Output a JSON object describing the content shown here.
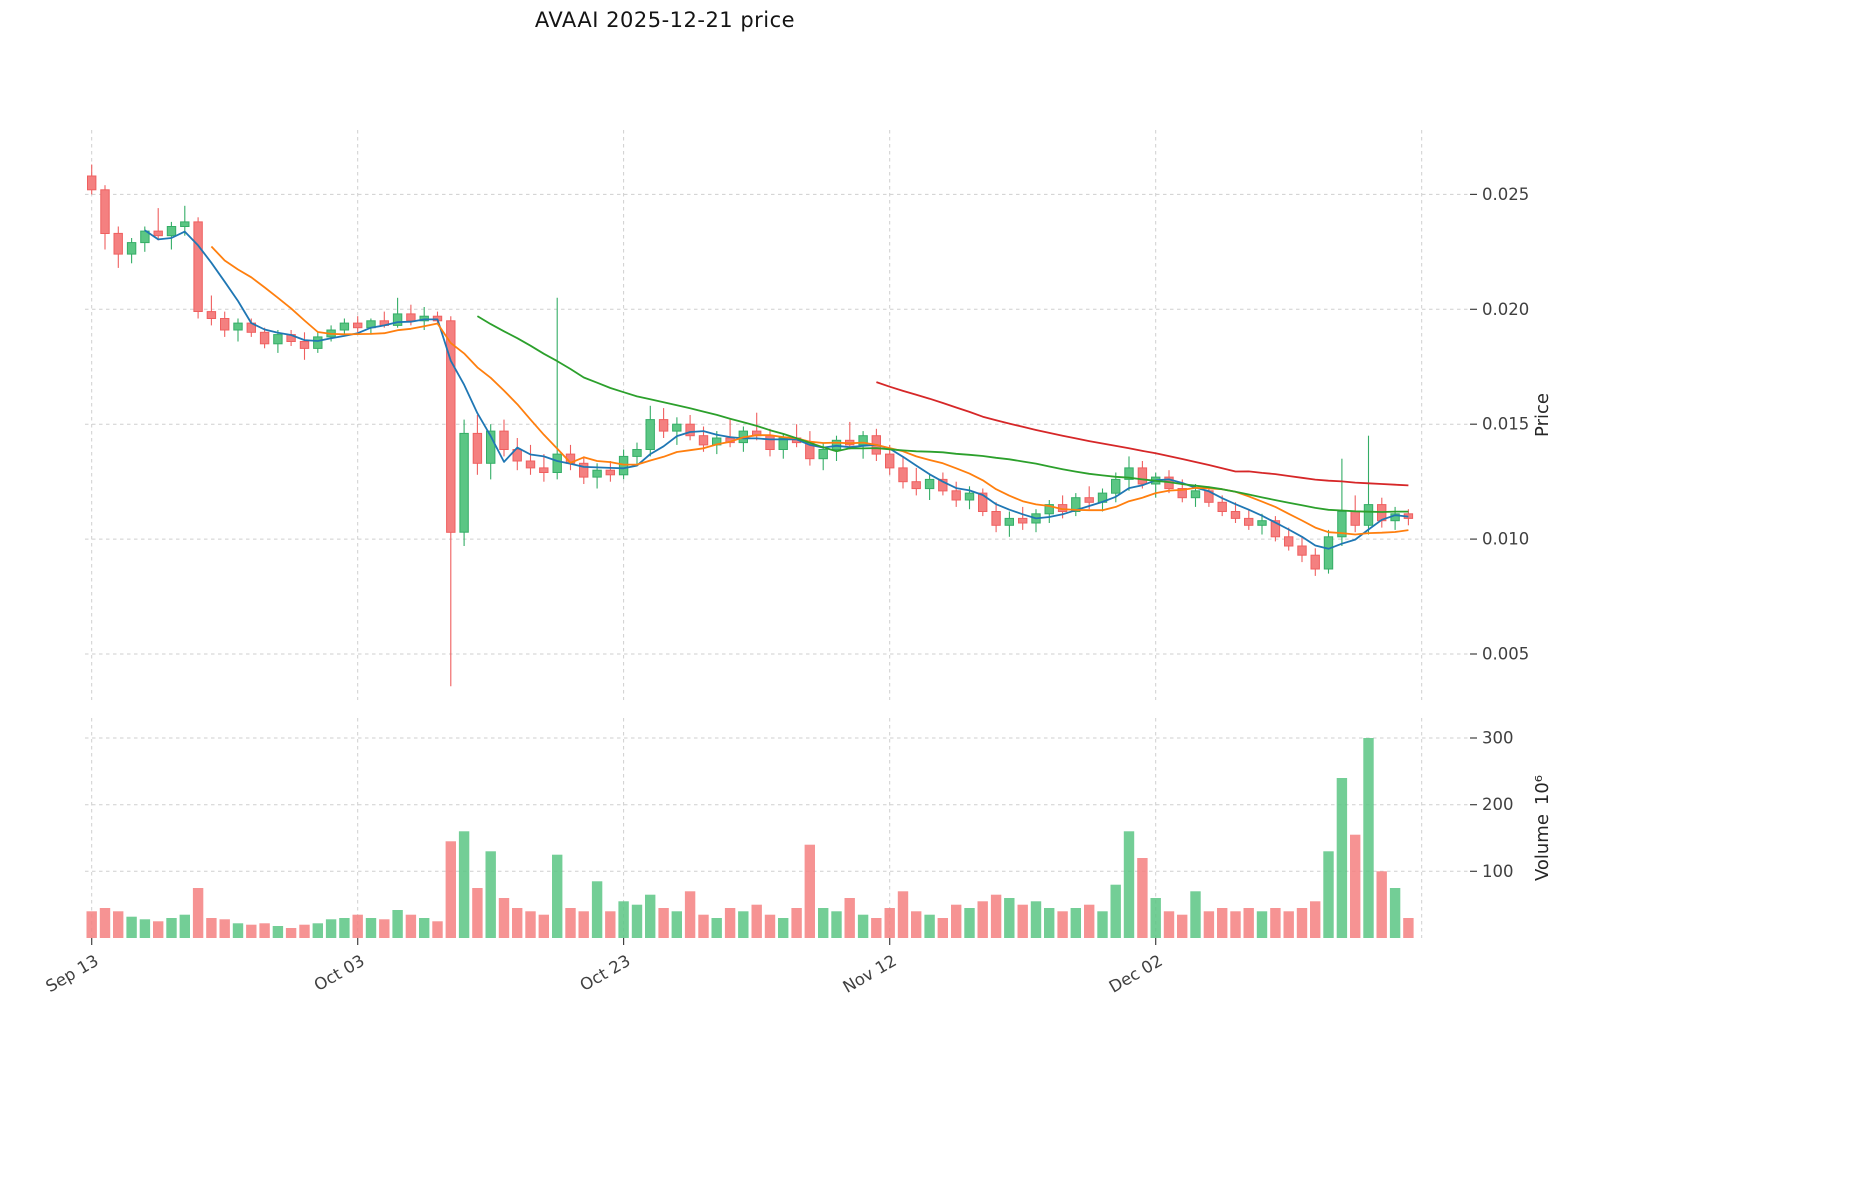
{
  "chart_data": {
    "type": "candlestick_with_volume",
    "title": "AVAAI  2025-12-21  price",
    "price_axis": {
      "label": "Price",
      "ticks": [
        0.005,
        0.01,
        0.015,
        0.02,
        0.025
      ],
      "ylim": [
        0.003,
        0.0278
      ]
    },
    "volume_axis": {
      "label": "Volume",
      "unit": "10⁶",
      "ticks": [
        100,
        200,
        300
      ],
      "ylim": [
        0,
        330
      ]
    },
    "x_ticks": {
      "days": [
        0,
        20,
        40,
        60,
        80
      ],
      "labels": [
        "Sep 13",
        "Oct 03",
        "Oct 23",
        "Nov 12",
        "Dec 02"
      ],
      "extra_grid_days": [
        100
      ]
    },
    "legend_position": "none",
    "grid": true,
    "grid_color": "#cfcfcf",
    "up_color": "#5bc684",
    "down_color": "#f48080",
    "up_edge": "#34ad66",
    "down_edge": "#ef5f5f",
    "moving_averages": [
      {
        "window": 5,
        "color": "#1f77b4"
      },
      {
        "window": 10,
        "color": "#ff7f0e"
      },
      {
        "window": 30,
        "color": "#2ca02c"
      },
      {
        "window": 60,
        "color": "#d62728"
      }
    ],
    "dates": [
      "2025-09-13",
      "2025-09-14",
      "2025-09-15",
      "2025-09-16",
      "2025-09-17",
      "2025-09-18",
      "2025-09-19",
      "2025-09-20",
      "2025-09-21",
      "2025-09-22",
      "2025-09-23",
      "2025-09-24",
      "2025-09-25",
      "2025-09-26",
      "2025-09-27",
      "2025-09-28",
      "2025-09-29",
      "2025-09-30",
      "2025-10-01",
      "2025-10-02",
      "2025-10-03",
      "2025-10-04",
      "2025-10-05",
      "2025-10-06",
      "2025-10-07",
      "2025-10-08",
      "2025-10-09",
      "2025-10-10",
      "2025-10-11",
      "2025-10-12",
      "2025-10-13",
      "2025-10-14",
      "2025-10-15",
      "2025-10-16",
      "2025-10-17",
      "2025-10-18",
      "2025-10-19",
      "2025-10-20",
      "2025-10-21",
      "2025-10-22",
      "2025-10-23",
      "2025-10-24",
      "2025-10-25",
      "2025-10-26",
      "2025-10-27",
      "2025-10-28",
      "2025-10-29",
      "2025-10-30",
      "2025-10-31",
      "2025-11-01",
      "2025-11-02",
      "2025-11-03",
      "2025-11-04",
      "2025-11-05",
      "2025-11-06",
      "2025-11-07",
      "2025-11-08",
      "2025-11-09",
      "2025-11-10",
      "2025-11-11",
      "2025-11-12",
      "2025-11-13",
      "2025-11-14",
      "2025-11-15",
      "2025-11-16",
      "2025-11-17",
      "2025-11-18",
      "2025-11-19",
      "2025-11-20",
      "2025-11-21",
      "2025-11-22",
      "2025-11-23",
      "2025-11-24",
      "2025-11-25",
      "2025-11-26",
      "2025-11-27",
      "2025-11-28",
      "2025-11-29",
      "2025-11-30",
      "2025-12-01",
      "2025-12-02",
      "2025-12-03",
      "2025-12-04",
      "2025-12-05",
      "2025-12-06",
      "2025-12-07",
      "2025-12-08",
      "2025-12-09",
      "2025-12-10",
      "2025-12-11",
      "2025-12-12",
      "2025-12-13",
      "2025-12-14",
      "2025-12-15",
      "2025-12-16",
      "2025-12-17",
      "2025-12-18",
      "2025-12-19",
      "2025-12-20",
      "2025-12-21"
    ],
    "ohlcv": [
      [
        0.0258,
        0.0263,
        0.025,
        0.0252,
        40
      ],
      [
        0.0252,
        0.0254,
        0.0226,
        0.0233,
        45
      ],
      [
        0.0233,
        0.0236,
        0.0218,
        0.0224,
        40
      ],
      [
        0.0224,
        0.0231,
        0.022,
        0.0229,
        32
      ],
      [
        0.0229,
        0.0236,
        0.0225,
        0.0234,
        28
      ],
      [
        0.0234,
        0.0244,
        0.023,
        0.0232,
        25
      ],
      [
        0.0232,
        0.0238,
        0.0226,
        0.0236,
        30
      ],
      [
        0.0236,
        0.0245,
        0.0232,
        0.0238,
        35
      ],
      [
        0.0238,
        0.024,
        0.0196,
        0.0199,
        75
      ],
      [
        0.0199,
        0.0206,
        0.0193,
        0.0196,
        30
      ],
      [
        0.0196,
        0.0199,
        0.0188,
        0.0191,
        28
      ],
      [
        0.0191,
        0.0196,
        0.0186,
        0.0194,
        22
      ],
      [
        0.0194,
        0.0196,
        0.0188,
        0.019,
        20
      ],
      [
        0.019,
        0.0192,
        0.0183,
        0.0185,
        22
      ],
      [
        0.0185,
        0.0191,
        0.0181,
        0.0189,
        18
      ],
      [
        0.0189,
        0.0191,
        0.0184,
        0.0186,
        15
      ],
      [
        0.0186,
        0.019,
        0.0178,
        0.0183,
        20
      ],
      [
        0.0183,
        0.019,
        0.0181,
        0.0188,
        22
      ],
      [
        0.0188,
        0.0193,
        0.0186,
        0.0191,
        28
      ],
      [
        0.0191,
        0.0196,
        0.0189,
        0.0194,
        30
      ],
      [
        0.0194,
        0.0197,
        0.019,
        0.0192,
        35
      ],
      [
        0.0192,
        0.0196,
        0.0189,
        0.0195,
        30
      ],
      [
        0.0195,
        0.0199,
        0.0192,
        0.0193,
        28
      ],
      [
        0.0193,
        0.0205,
        0.0192,
        0.0198,
        42
      ],
      [
        0.0198,
        0.0202,
        0.0193,
        0.0195,
        35
      ],
      [
        0.0195,
        0.0201,
        0.0191,
        0.0197,
        30
      ],
      [
        0.0197,
        0.0199,
        0.0194,
        0.0195,
        25
      ],
      [
        0.0195,
        0.0197,
        0.0036,
        0.0103,
        145
      ],
      [
        0.0103,
        0.0152,
        0.0097,
        0.0146,
        160
      ],
      [
        0.0146,
        0.0154,
        0.0128,
        0.0133,
        75
      ],
      [
        0.0133,
        0.015,
        0.0126,
        0.0147,
        130
      ],
      [
        0.0147,
        0.0152,
        0.0136,
        0.0139,
        60
      ],
      [
        0.0139,
        0.0144,
        0.013,
        0.0134,
        45
      ],
      [
        0.0134,
        0.0141,
        0.0128,
        0.0131,
        40
      ],
      [
        0.0131,
        0.0137,
        0.0125,
        0.0129,
        35
      ],
      [
        0.0129,
        0.0205,
        0.0126,
        0.0137,
        125
      ],
      [
        0.0137,
        0.0141,
        0.013,
        0.0133,
        45
      ],
      [
        0.0133,
        0.0136,
        0.0124,
        0.0127,
        40
      ],
      [
        0.0127,
        0.0133,
        0.0122,
        0.013,
        85
      ],
      [
        0.013,
        0.0134,
        0.0125,
        0.0128,
        40
      ],
      [
        0.0128,
        0.0139,
        0.0126,
        0.0136,
        55
      ],
      [
        0.0136,
        0.0142,
        0.0132,
        0.0139,
        50
      ],
      [
        0.0139,
        0.0158,
        0.0136,
        0.0152,
        65
      ],
      [
        0.0152,
        0.0157,
        0.0144,
        0.0147,
        45
      ],
      [
        0.0147,
        0.0153,
        0.0141,
        0.015,
        40
      ],
      [
        0.015,
        0.0154,
        0.0143,
        0.0145,
        70
      ],
      [
        0.0145,
        0.0149,
        0.0138,
        0.0141,
        35
      ],
      [
        0.0141,
        0.0147,
        0.0137,
        0.0144,
        30
      ],
      [
        0.0144,
        0.0152,
        0.014,
        0.0142,
        45
      ],
      [
        0.0142,
        0.0149,
        0.0138,
        0.0147,
        40
      ],
      [
        0.0147,
        0.0155,
        0.0143,
        0.0145,
        50
      ],
      [
        0.0145,
        0.0148,
        0.0136,
        0.0139,
        35
      ],
      [
        0.0139,
        0.0146,
        0.0135,
        0.0144,
        30
      ],
      [
        0.0144,
        0.015,
        0.014,
        0.0142,
        45
      ],
      [
        0.0142,
        0.0147,
        0.0132,
        0.0135,
        140
      ],
      [
        0.0135,
        0.0142,
        0.013,
        0.0139,
        45
      ],
      [
        0.0139,
        0.0145,
        0.0134,
        0.0143,
        40
      ],
      [
        0.0143,
        0.0151,
        0.0139,
        0.0141,
        60
      ],
      [
        0.0141,
        0.0147,
        0.0135,
        0.0145,
        35
      ],
      [
        0.0145,
        0.0148,
        0.0134,
        0.0137,
        30
      ],
      [
        0.0137,
        0.0141,
        0.0128,
        0.0131,
        45
      ],
      [
        0.0131,
        0.0136,
        0.0122,
        0.0125,
        70
      ],
      [
        0.0125,
        0.0131,
        0.0119,
        0.0122,
        40
      ],
      [
        0.0122,
        0.0128,
        0.0117,
        0.0126,
        35
      ],
      [
        0.0126,
        0.0129,
        0.0119,
        0.0121,
        30
      ],
      [
        0.0121,
        0.0125,
        0.0114,
        0.0117,
        50
      ],
      [
        0.0117,
        0.0123,
        0.0113,
        0.012,
        45
      ],
      [
        0.012,
        0.0122,
        0.011,
        0.0112,
        55
      ],
      [
        0.0112,
        0.0116,
        0.0103,
        0.0106,
        65
      ],
      [
        0.0106,
        0.0112,
        0.0101,
        0.0109,
        60
      ],
      [
        0.0109,
        0.0114,
        0.0104,
        0.0107,
        50
      ],
      [
        0.0107,
        0.0113,
        0.0103,
        0.0111,
        55
      ],
      [
        0.0111,
        0.0117,
        0.0107,
        0.0115,
        45
      ],
      [
        0.0115,
        0.0119,
        0.0109,
        0.0112,
        40
      ],
      [
        0.0112,
        0.012,
        0.011,
        0.0118,
        45
      ],
      [
        0.0118,
        0.0123,
        0.0113,
        0.0116,
        50
      ],
      [
        0.0116,
        0.0122,
        0.0112,
        0.012,
        40
      ],
      [
        0.012,
        0.0129,
        0.0116,
        0.0126,
        80
      ],
      [
        0.0126,
        0.0136,
        0.0121,
        0.0131,
        160
      ],
      [
        0.0131,
        0.0134,
        0.0122,
        0.0124,
        120
      ],
      [
        0.0124,
        0.0129,
        0.0118,
        0.0127,
        60
      ],
      [
        0.0127,
        0.013,
        0.012,
        0.0122,
        40
      ],
      [
        0.0122,
        0.0126,
        0.0116,
        0.0118,
        35
      ],
      [
        0.0118,
        0.0124,
        0.0114,
        0.0121,
        70
      ],
      [
        0.0121,
        0.0123,
        0.0114,
        0.0116,
        40
      ],
      [
        0.0116,
        0.0119,
        0.011,
        0.0112,
        45
      ],
      [
        0.0112,
        0.0116,
        0.0107,
        0.0109,
        40
      ],
      [
        0.0109,
        0.0113,
        0.0104,
        0.0106,
        45
      ],
      [
        0.0106,
        0.0111,
        0.0102,
        0.0108,
        40
      ],
      [
        0.0108,
        0.011,
        0.0099,
        0.0101,
        45
      ],
      [
        0.0101,
        0.0105,
        0.0095,
        0.0097,
        40
      ],
      [
        0.0097,
        0.0101,
        0.009,
        0.0093,
        45
      ],
      [
        0.0093,
        0.0096,
        0.0084,
        0.0087,
        55
      ],
      [
        0.0087,
        0.0104,
        0.0085,
        0.0101,
        130
      ],
      [
        0.0101,
        0.0135,
        0.0097,
        0.0112,
        240
      ],
      [
        0.0112,
        0.0119,
        0.0103,
        0.0106,
        155
      ],
      [
        0.0106,
        0.0145,
        0.0102,
        0.0115,
        300
      ],
      [
        0.0115,
        0.0118,
        0.0105,
        0.0108,
        100
      ],
      [
        0.0108,
        0.0114,
        0.0104,
        0.0111,
        75
      ],
      [
        0.0111,
        0.0113,
        0.0106,
        0.0109,
        30
      ]
    ]
  }
}
